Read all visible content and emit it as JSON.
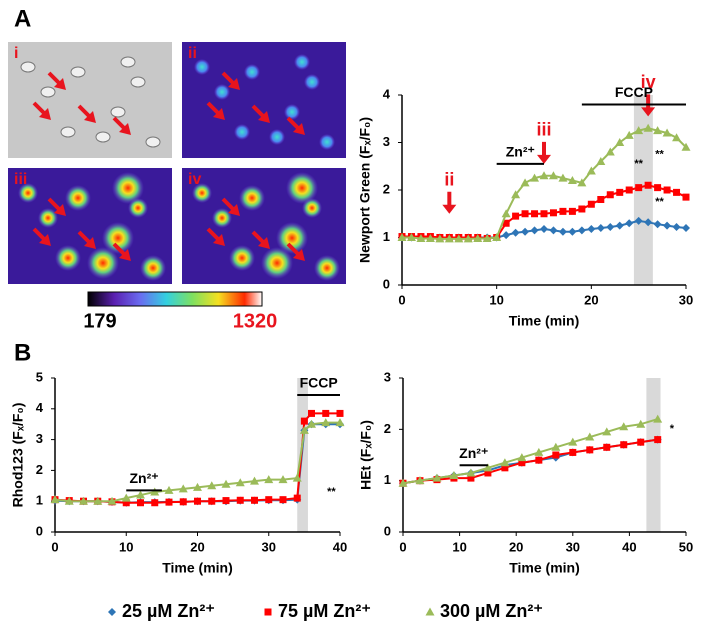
{
  "panel_labels": [
    "A",
    "B"
  ],
  "images": {
    "labels": [
      "i",
      "ii",
      "iii",
      "iv"
    ],
    "colorbar": {
      "min": "179",
      "max": "1320"
    }
  },
  "chart_data": [
    {
      "type": "line",
      "y_label": "Newport Green (Fₓ/F₀)",
      "x_label": "Time (min)",
      "x": [
        0,
        1,
        2,
        3,
        4,
        5,
        6,
        7,
        8,
        9,
        10,
        11,
        12,
        13,
        14,
        15,
        16,
        17,
        18,
        19,
        20,
        21,
        22,
        23,
        24,
        25,
        26,
        27,
        28,
        29,
        30
      ],
      "xlim": [
        0,
        30
      ],
      "xticks": [
        0,
        10,
        20,
        30
      ],
      "ylim": [
        0,
        4
      ],
      "yticks": [
        0,
        1,
        2,
        3,
        4
      ],
      "highlight_x": [
        24.5,
        26.5
      ],
      "series": [
        {
          "name": "25 µM Zn²⁺",
          "color": "#2e75b6",
          "marker": "diamond",
          "values": [
            1,
            1,
            1,
            1,
            1,
            1,
            1,
            1,
            1,
            1,
            1,
            1.05,
            1.1,
            1.12,
            1.15,
            1.18,
            1.15,
            1.12,
            1.12,
            1.15,
            1.18,
            1.2,
            1.22,
            1.25,
            1.3,
            1.35,
            1.32,
            1.28,
            1.25,
            1.22,
            1.2
          ]
        },
        {
          "name": "75 µM Zn²⁺",
          "color": "#ff0000",
          "marker": "square",
          "values": [
            1.02,
            1.02,
            1.02,
            1.02,
            1,
            1,
            1,
            1,
            1,
            0.98,
            1,
            1.3,
            1.45,
            1.5,
            1.5,
            1.5,
            1.52,
            1.55,
            1.55,
            1.6,
            1.7,
            1.8,
            1.9,
            1.95,
            2,
            2.05,
            2.1,
            2.05,
            2,
            1.95,
            1.85
          ]
        },
        {
          "name": "300 µM Zn²⁺",
          "color": "#9bbb59",
          "marker": "triangle",
          "values": [
            1,
            1,
            0.98,
            0.98,
            0.97,
            0.97,
            0.97,
            0.97,
            0.98,
            0.98,
            1,
            1.5,
            1.9,
            2.15,
            2.25,
            2.3,
            2.3,
            2.25,
            2.2,
            2.15,
            2.4,
            2.6,
            2.8,
            3,
            3.15,
            3.25,
            3.3,
            3.25,
            3.2,
            3.1,
            2.9
          ]
        }
      ],
      "annotations": [
        {
          "kind": "arrow",
          "text": "ii",
          "x": 5,
          "y": 1.5
        },
        {
          "kind": "arrow",
          "text": "iii",
          "x": 15,
          "y": 2.55
        },
        {
          "kind": "arrow",
          "text": "iv",
          "x": 26,
          "y": 3.55
        },
        {
          "kind": "bar",
          "text": "Zn²⁺",
          "x": [
            10,
            15
          ],
          "y": 2.55
        },
        {
          "kind": "bar",
          "text": "FCCP",
          "x": [
            19,
            30
          ],
          "y": 3.8
        },
        {
          "kind": "label",
          "text": "**",
          "x": 25,
          "y": 2.55
        },
        {
          "kind": "label",
          "text": "**",
          "x": 27.2,
          "y": 2.75
        },
        {
          "kind": "label",
          "text": "**",
          "x": 27.2,
          "y": 1.75
        }
      ]
    },
    {
      "type": "line",
      "y_label": "Rhod123 (Fₓ/F₀)",
      "x_label": "Time (min)",
      "x": [
        0,
        2,
        4,
        6,
        8,
        10,
        12,
        14,
        16,
        18,
        20,
        22,
        24,
        26,
        28,
        30,
        32,
        34,
        35,
        36,
        38,
        40
      ],
      "xlim": [
        0,
        40
      ],
      "xticks": [
        0,
        10,
        20,
        30,
        40
      ],
      "ylim": [
        0,
        5
      ],
      "yticks": [
        0,
        1,
        2,
        3,
        4,
        5
      ],
      "highlight_x": [
        34,
        35.5
      ],
      "series": [
        {
          "name": "25 µM Zn²⁺",
          "color": "#2e75b6",
          "marker": "diamond",
          "values": [
            1.02,
            1,
            1,
            1,
            0.98,
            0.95,
            0.97,
            0.97,
            0.98,
            0.98,
            1,
            1,
            1,
            1.02,
            1.02,
            1.03,
            1.03,
            1.05,
            3.3,
            3.5,
            3.5,
            3.5
          ]
        },
        {
          "name": "75 µM Zn²⁺",
          "color": "#ff0000",
          "marker": "square",
          "values": [
            1.05,
            1.02,
            1,
            1,
            0.98,
            0.95,
            0.95,
            0.95,
            0.97,
            0.98,
            1,
            1,
            1.02,
            1.03,
            1.03,
            1.05,
            1.05,
            1.1,
            3.6,
            3.85,
            3.85,
            3.85
          ]
        },
        {
          "name": "300 µM Zn²⁺",
          "color": "#9bbb59",
          "marker": "triangle",
          "values": [
            1.05,
            1,
            1,
            1,
            1,
            1.1,
            1.2,
            1.3,
            1.35,
            1.4,
            1.45,
            1.5,
            1.55,
            1.6,
            1.65,
            1.7,
            1.7,
            1.75,
            3.3,
            3.5,
            3.55,
            3.55
          ]
        }
      ],
      "annotations": [
        {
          "kind": "bar",
          "text": "Zn²⁺",
          "x": [
            10,
            15
          ],
          "y": 1.35
        },
        {
          "kind": "bar",
          "text": "FCCP",
          "x": [
            34,
            40
          ],
          "y": 4.45
        },
        {
          "kind": "label",
          "text": "**",
          "x": 38.8,
          "y": 1.3
        }
      ]
    },
    {
      "type": "line",
      "y_label": "HEt (Fₓ/F₀)",
      "x_label": "Time (min)",
      "x": [
        0,
        3,
        6,
        9,
        12,
        15,
        18,
        21,
        24,
        27,
        30,
        33,
        36,
        39,
        42,
        45
      ],
      "xlim": [
        0,
        50
      ],
      "xticks": [
        0,
        10,
        20,
        30,
        40,
        50
      ],
      "ylim": [
        0,
        3
      ],
      "yticks": [
        0,
        1,
        2,
        3
      ],
      "highlight_x": [
        43,
        45.5
      ],
      "series": [
        {
          "name": "25 µM Zn²⁺",
          "color": "#2e75b6",
          "marker": "diamond",
          "values": [
            0.95,
            1,
            1.05,
            1.1,
            1.15,
            1.2,
            1.3,
            1.35,
            1.4,
            1.45,
            1.55,
            1.6,
            1.65,
            1.7,
            1.75,
            1.8
          ]
        },
        {
          "name": "75 µM Zn²⁺",
          "color": "#ff0000",
          "marker": "square",
          "values": [
            0.95,
            1,
            1.02,
            1.05,
            1.05,
            1.15,
            1.25,
            1.35,
            1.4,
            1.5,
            1.55,
            1.6,
            1.65,
            1.7,
            1.75,
            1.8
          ]
        },
        {
          "name": "300 µM Zn²⁺",
          "color": "#9bbb59",
          "marker": "triangle",
          "values": [
            0.95,
            1,
            1.05,
            1.1,
            1.15,
            1.25,
            1.35,
            1.45,
            1.55,
            1.65,
            1.75,
            1.85,
            1.95,
            2.05,
            2.1,
            2.2
          ]
        }
      ],
      "annotations": [
        {
          "kind": "bar",
          "text": "Zn²⁺",
          "x": [
            10,
            15
          ],
          "y": 1.3
        },
        {
          "kind": "label",
          "text": "*",
          "x": 47.5,
          "y": 2
        }
      ]
    }
  ]
}
